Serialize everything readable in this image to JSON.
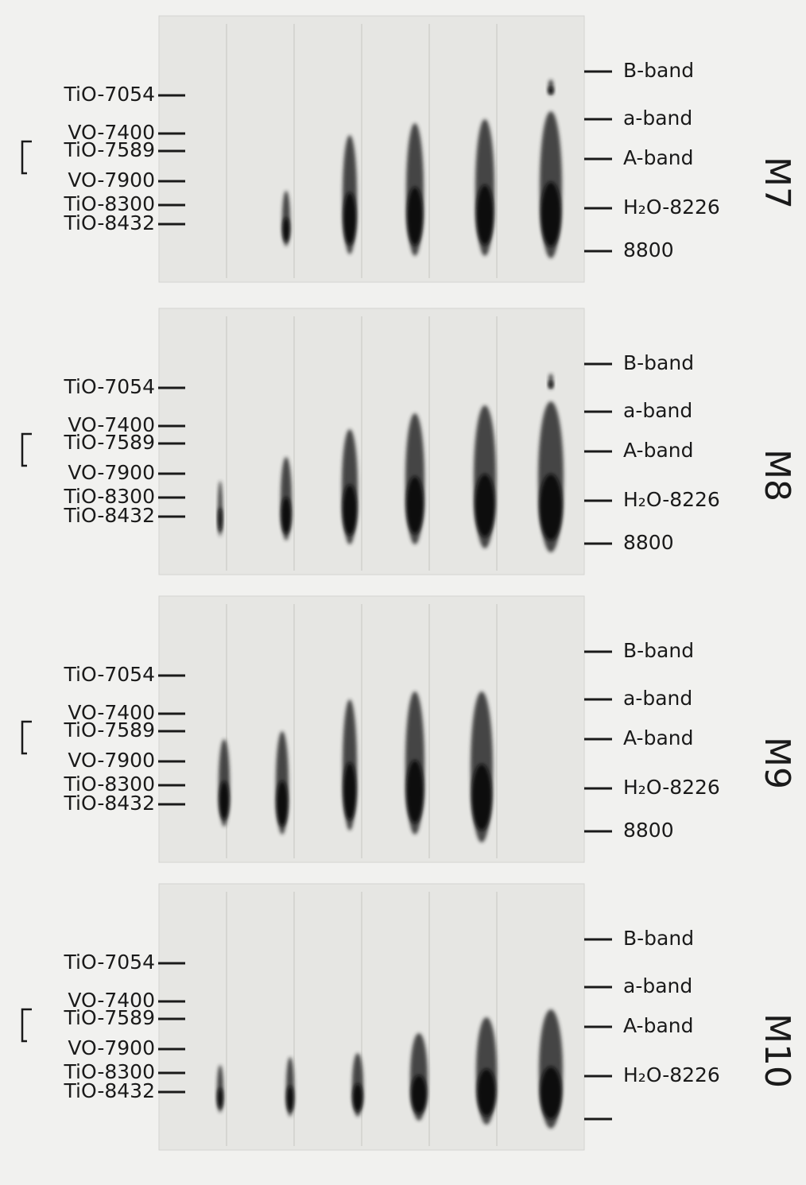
{
  "panels": [
    {
      "label": "M7",
      "left_labels": [
        "TiO-7054",
        "VO-7400",
        "TiO-7589",
        "VO-7900",
        "TiO-8300",
        "TiO-8432"
      ],
      "right_labels": [
        "B-band",
        "a-band",
        "A-band",
        "H₂O-8226",
        "8800"
      ]
    },
    {
      "label": "M8",
      "left_labels": [
        "TiO-7054",
        "VO-7400",
        "TiO-7589",
        "VO-7900",
        "TiO-8300",
        "TiO-8432"
      ],
      "right_labels": [
        "B-band",
        "a-band",
        "A-band",
        "H₂O-8226",
        "8800"
      ]
    },
    {
      "label": "M9",
      "left_labels": [
        "TiO-7054",
        "VO-7400",
        "TiO-7589",
        "VO-7900",
        "TiO-8300",
        "TiO-8432"
      ],
      "right_labels": [
        "B-band",
        "a-band",
        "A-band",
        "H₂O-8226",
        "8800"
      ]
    },
    {
      "label": "M10",
      "left_labels": [
        "TiO-7054",
        "VO-7400",
        "TiO-7589",
        "VO-7900",
        "TiO-8300",
        "TiO-8432"
      ],
      "right_labels": [
        "B-band",
        "a-band",
        "A-band",
        "H₂O-8226"
      ]
    }
  ]
}
